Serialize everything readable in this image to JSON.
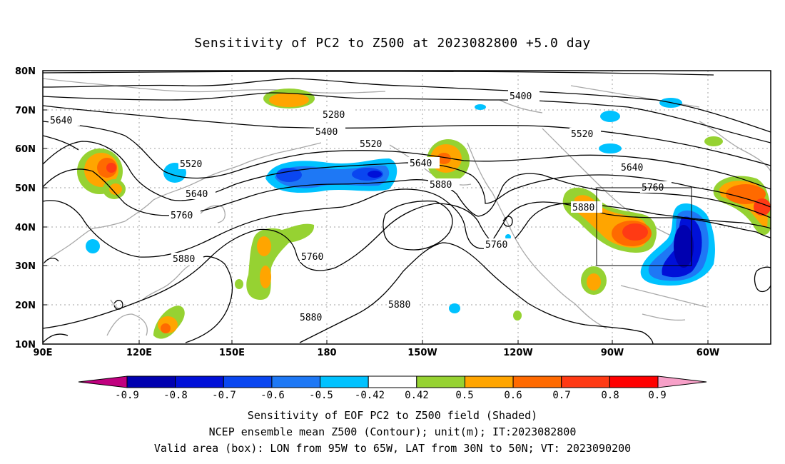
{
  "title": "Sensitivity of PC2 to Z500 at 2023082800 +5.0 day",
  "lat_labels": [
    "80N",
    "70N",
    "60N",
    "50N",
    "40N",
    "30N",
    "20N",
    "10N"
  ],
  "lon_labels": [
    "90E",
    "120E",
    "150E",
    "180",
    "150W",
    "120W",
    "90W",
    "60W"
  ],
  "contour_labels": [
    "5280",
    "5400",
    "5400",
    "5520",
    "5520",
    "5520",
    "5640",
    "5640",
    "5640",
    "5640",
    "5760",
    "5760",
    "5760",
    "5760",
    "5880",
    "5880",
    "5880",
    "5880",
    "5880"
  ],
  "colorbar": {
    "labels": [
      "-0.9",
      "-0.8",
      "-0.7",
      "-0.6",
      "-0.5",
      "-0.42",
      "0.42",
      "0.5",
      "0.6",
      "0.7",
      "0.8",
      "0.9"
    ],
    "colors": [
      "#c0007f",
      "#0000b0",
      "#0010d8",
      "#0a46f0",
      "#1e78f5",
      "#00c2ff",
      "#ffffff",
      "#96d232",
      "#ffa500",
      "#ff6a00",
      "#ff3a14",
      "#ff0000",
      "#f7a0c8"
    ]
  },
  "captions": [
    "Sensitivity of EOF PC2 to Z500 field (Shaded)",
    "NCEP ensemble mean Z500 (Contour); unit(m); IT:2023082800",
    "Valid area (box): LON from 95W to 65W, LAT from 30N to 50N; VT: 2023090200"
  ]
}
